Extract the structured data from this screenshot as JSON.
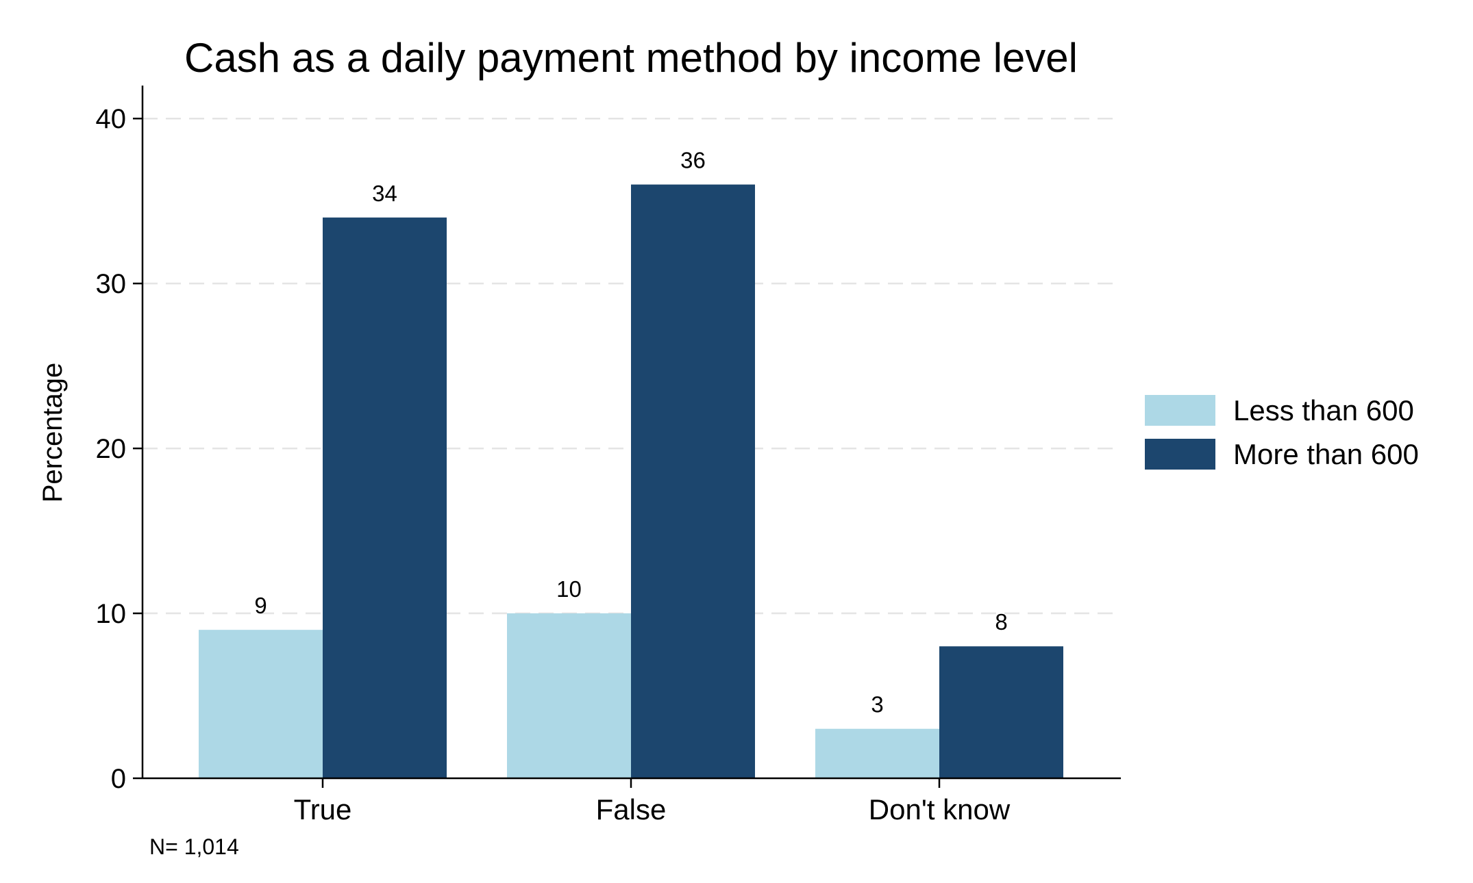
{
  "chart_data": {
    "type": "bar",
    "title": "Cash as a daily payment method by income level",
    "xlabel": "",
    "ylabel": "Percentage",
    "categories": [
      "True",
      "False",
      "Don't know"
    ],
    "series": [
      {
        "name": "Less than 600",
        "values": [
          9,
          10,
          3
        ],
        "color": "#add8e6"
      },
      {
        "name": "More than 600",
        "values": [
          34,
          36,
          8
        ],
        "color": "#1c466e"
      }
    ],
    "ylim": [
      0,
      42
    ],
    "yticks": [
      0,
      10,
      20,
      30,
      40
    ],
    "grid": true,
    "legend": "right",
    "note": "N= 1,014"
  }
}
